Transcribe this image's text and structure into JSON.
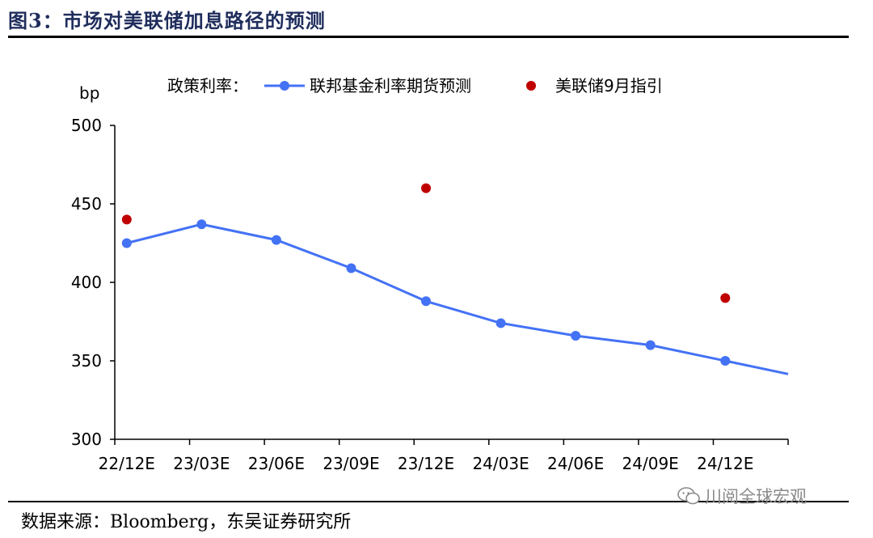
{
  "header": {
    "title": "图3：市场对美联储加息路径的预测"
  },
  "footer": {
    "source": "数据来源：Bloomberg，东吴证券研究所",
    "watermark": "川阅全球宏观"
  },
  "chart_data": {
    "type": "line",
    "ylabel": "bp",
    "ylim": [
      300,
      500
    ],
    "yticks": [
      300,
      350,
      400,
      450,
      500
    ],
    "categories": [
      "22/12E",
      "23/03E",
      "23/06E",
      "23/09E",
      "23/12E",
      "24/03E",
      "24/06E",
      "24/09E",
      "24/12E"
    ],
    "legend_title": "政策利率：",
    "series": [
      {
        "name": "联邦基金利率期货预测",
        "kind": "line",
        "color": "#4472f5",
        "values": [
          425,
          437,
          427,
          409,
          388,
          374,
          366,
          360,
          350
        ]
      },
      {
        "name": "美联储9月指引",
        "kind": "scatter",
        "color": "#c00000",
        "points": [
          {
            "x": "22/12E",
            "y": 440
          },
          {
            "x": "23/12E",
            "y": 460
          },
          {
            "x": "24/12E",
            "y": 390
          }
        ]
      }
    ]
  }
}
